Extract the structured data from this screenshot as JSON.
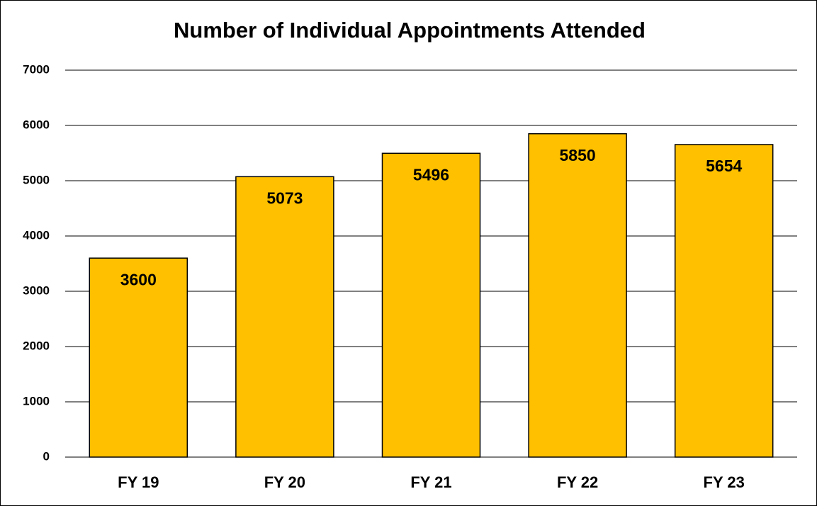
{
  "chart_data": {
    "type": "bar",
    "title": "Number of Individual Appointments Attended",
    "categories": [
      "FY 19",
      "FY 20",
      "FY 21",
      "FY 22",
      "FY 23"
    ],
    "values": [
      3600,
      5073,
      5496,
      5850,
      5654
    ],
    "color": "#FFC000",
    "ylim": [
      0,
      7000
    ],
    "yticks": [
      0,
      1000,
      2000,
      3000,
      4000,
      5000,
      6000,
      7000
    ],
    "grid": true
  }
}
